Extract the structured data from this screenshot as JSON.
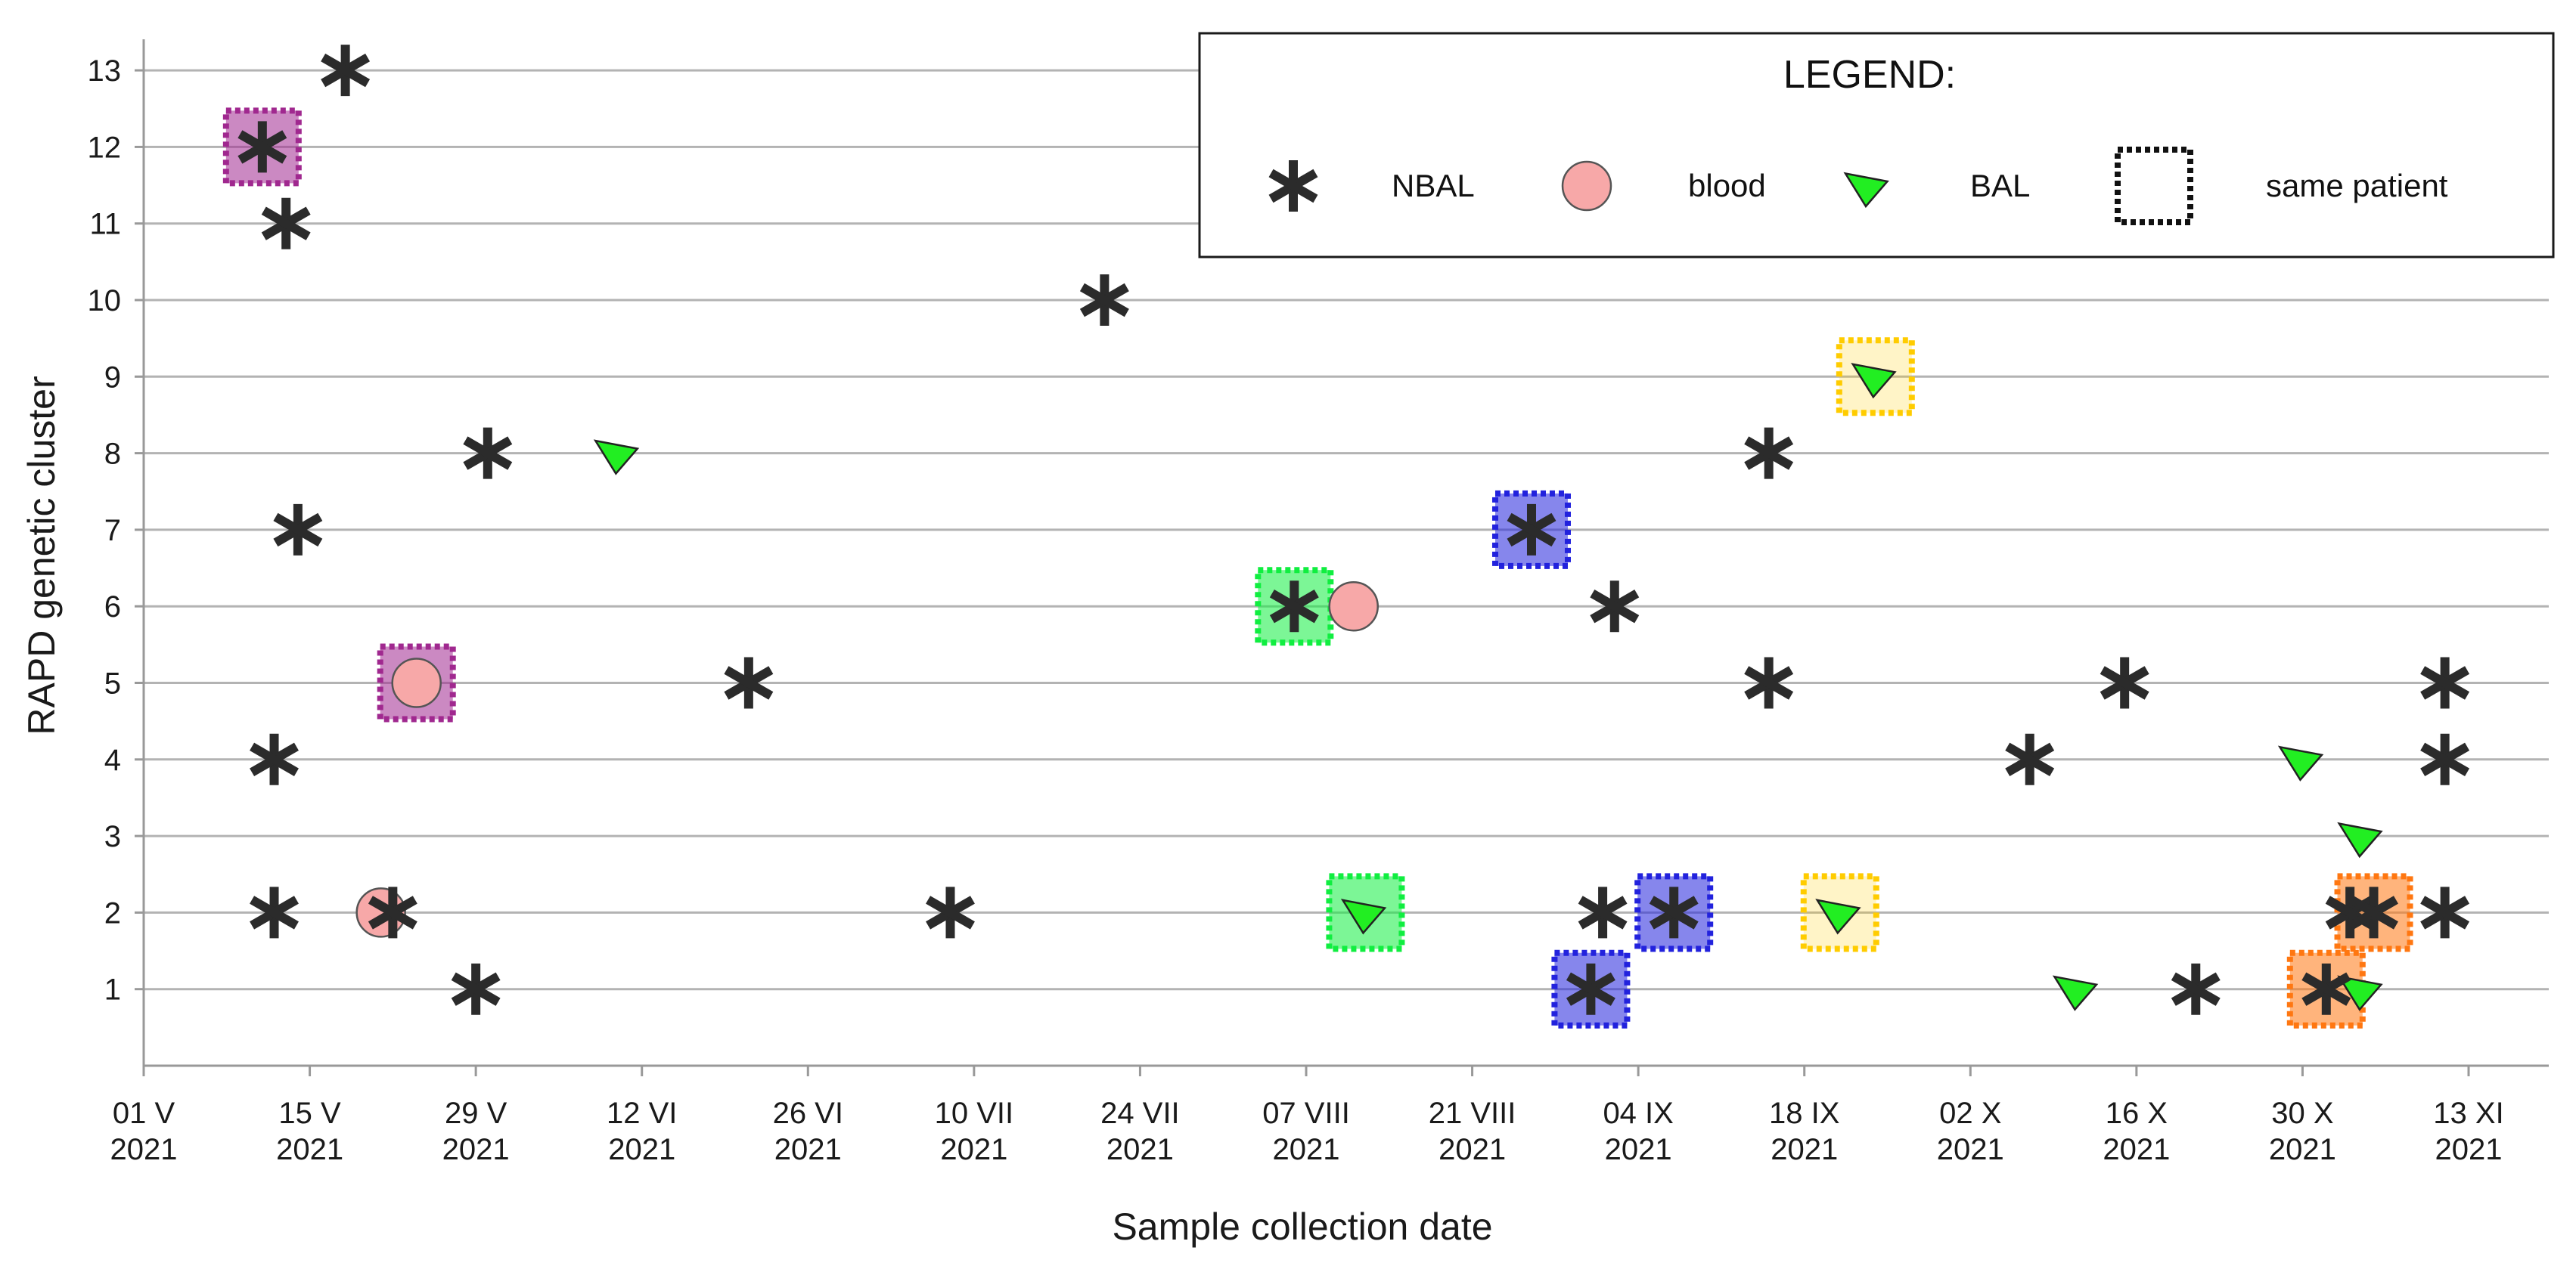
{
  "chart_data": {
    "type": "scatter",
    "xlabel": "Sample collection date",
    "ylabel": "RAPD genetic cluster",
    "xlim": [
      "2021-05-01",
      "2021-11-17"
    ],
    "ylim": [
      0,
      13.4
    ],
    "grid": "horizontal",
    "legend": {
      "title": "LEGEND:",
      "placement": "top-right",
      "entries": [
        {
          "key": "nbal",
          "label": "NBAL"
        },
        {
          "key": "blood",
          "label": "blood"
        },
        {
          "key": "bal",
          "label": "BAL"
        },
        {
          "key": "same",
          "label": "same patient"
        }
      ]
    },
    "x_ticks": [
      {
        "date": "2021-05-01",
        "line1": "01 V",
        "line2": "2021"
      },
      {
        "date": "2021-05-15",
        "line1": "15 V",
        "line2": "2021"
      },
      {
        "date": "2021-05-29",
        "line1": "29 V",
        "line2": "2021"
      },
      {
        "date": "2021-06-12",
        "line1": "12 VI",
        "line2": "2021"
      },
      {
        "date": "2021-06-26",
        "line1": "26 VI",
        "line2": "2021"
      },
      {
        "date": "2021-07-10",
        "line1": "10 VII",
        "line2": "2021"
      },
      {
        "date": "2021-07-24",
        "line1": "24 VII",
        "line2": "2021"
      },
      {
        "date": "2021-08-07",
        "line1": "07 VIII",
        "line2": "2021"
      },
      {
        "date": "2021-08-21",
        "line1": "21 VIII",
        "line2": "2021"
      },
      {
        "date": "2021-09-04",
        "line1": "04 IX",
        "line2": "2021"
      },
      {
        "date": "2021-09-18",
        "line1": "18 IX",
        "line2": "2021"
      },
      {
        "date": "2021-10-02",
        "line1": "02 X",
        "line2": "2021"
      },
      {
        "date": "2021-10-16",
        "line1": "16 X",
        "line2": "2021"
      },
      {
        "date": "2021-10-30",
        "line1": "30 X",
        "line2": "2021"
      },
      {
        "date": "2021-11-13",
        "line1": "13 XI",
        "line2": "2021"
      }
    ],
    "y_ticks": [
      1,
      2,
      3,
      4,
      5,
      6,
      7,
      8,
      9,
      10,
      11,
      12,
      13
    ],
    "colors": {
      "nbal": "#2b2b2b",
      "blood_fill": "#f7a8a8",
      "bal_fill": "#22ee22",
      "grid": "#b3b3b3",
      "purple": "#a0288f",
      "green": "#10ee40",
      "blue": "#2222dd",
      "yellow": "#ffcc00",
      "orange": "#ff7711"
    },
    "same_patient_groups": [
      {
        "color": "purple",
        "points": [
          {
            "date": "2021-05-11",
            "y": 12
          },
          {
            "date": "2021-05-24",
            "y": 5
          }
        ]
      },
      {
        "color": "green",
        "points": [
          {
            "date": "2021-08-06",
            "y": 6
          },
          {
            "date": "2021-08-12",
            "y": 2
          }
        ]
      },
      {
        "color": "blue",
        "points": [
          {
            "date": "2021-08-26",
            "y": 7
          },
          {
            "date": "2021-08-31",
            "y": 1
          },
          {
            "date": "2021-09-07",
            "y": 2
          }
        ]
      },
      {
        "color": "yellow",
        "points": [
          {
            "date": "2021-09-21",
            "y": 2
          },
          {
            "date": "2021-09-24",
            "y": 9
          }
        ]
      },
      {
        "color": "orange",
        "points": [
          {
            "date": "2021-11-01",
            "y": 1
          },
          {
            "date": "2021-11-05",
            "y": 2
          }
        ]
      }
    ],
    "series": [
      {
        "key": "nbal",
        "name": "NBAL",
        "points": [
          {
            "date": "2021-05-18",
            "y": 13
          },
          {
            "date": "2021-05-11",
            "y": 12
          },
          {
            "date": "2021-05-13",
            "y": 11
          },
          {
            "date": "2021-07-21",
            "y": 10
          },
          {
            "date": "2021-05-30",
            "y": 8
          },
          {
            "date": "2021-09-15",
            "y": 8
          },
          {
            "date": "2021-05-14",
            "y": 7
          },
          {
            "date": "2021-08-26",
            "y": 7
          },
          {
            "date": "2021-08-06",
            "y": 6
          },
          {
            "date": "2021-09-02",
            "y": 6
          },
          {
            "date": "2021-06-21",
            "y": 5
          },
          {
            "date": "2021-09-15",
            "y": 5
          },
          {
            "date": "2021-10-15",
            "y": 5
          },
          {
            "date": "2021-11-11",
            "y": 5
          },
          {
            "date": "2021-05-12",
            "y": 4
          },
          {
            "date": "2021-10-07",
            "y": 4
          },
          {
            "date": "2021-11-11",
            "y": 4
          },
          {
            "date": "2021-05-12",
            "y": 2
          },
          {
            "date": "2021-05-22",
            "y": 2
          },
          {
            "date": "2021-07-08",
            "y": 2
          },
          {
            "date": "2021-09-01",
            "y": 2
          },
          {
            "date": "2021-09-07",
            "y": 2
          },
          {
            "date": "2021-11-03",
            "y": 2
          },
          {
            "date": "2021-11-05",
            "y": 2
          },
          {
            "date": "2021-11-11",
            "y": 2
          },
          {
            "date": "2021-05-29",
            "y": 1
          },
          {
            "date": "2021-08-31",
            "y": 1
          },
          {
            "date": "2021-10-21",
            "y": 1
          },
          {
            "date": "2021-11-01",
            "y": 1
          }
        ]
      },
      {
        "key": "blood",
        "name": "blood",
        "points": [
          {
            "date": "2021-05-24",
            "y": 5
          },
          {
            "date": "2021-08-11",
            "y": 6
          },
          {
            "date": "2021-05-21",
            "y": 2
          }
        ]
      },
      {
        "key": "bal",
        "name": "BAL",
        "points": [
          {
            "date": "2021-06-10",
            "y": 8
          },
          {
            "date": "2021-09-24",
            "y": 9
          },
          {
            "date": "2021-08-12",
            "y": 2
          },
          {
            "date": "2021-09-21",
            "y": 2
          },
          {
            "date": "2021-10-11",
            "y": 1
          },
          {
            "date": "2021-10-30",
            "y": 4
          },
          {
            "date": "2021-11-04",
            "y": 3
          },
          {
            "date": "2021-11-04",
            "y": 1
          }
        ]
      }
    ]
  }
}
